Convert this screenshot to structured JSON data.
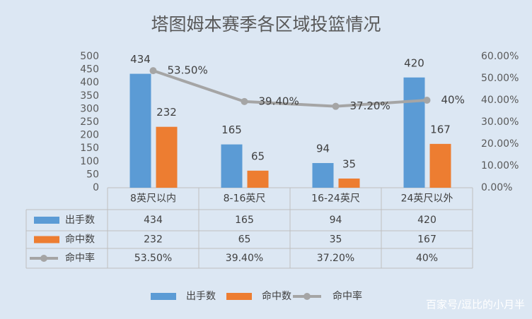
{
  "chart_data": {
    "type": "bar",
    "title": "塔图姆本赛季各区域投篮情况",
    "categories": [
      "8英尺以内",
      "8-16英尺",
      "16-24英尺",
      "24英尺以外"
    ],
    "series": [
      {
        "name": "出手数",
        "color": "#5b9bd5",
        "values": [
          434,
          165,
          94,
          420
        ]
      },
      {
        "name": "命中数",
        "color": "#ed7d31",
        "values": [
          232,
          65,
          35,
          167
        ]
      },
      {
        "name": "命中率",
        "color": "#a5a5a5",
        "type": "line",
        "axis": "y2",
        "values": [
          53.5,
          39.4,
          37.2,
          40
        ],
        "value_labels": [
          "53.50%",
          "39.40%",
          "37.20%",
          "40%"
        ]
      }
    ],
    "ylim": [
      0,
      500
    ],
    "yticks": [
      0,
      50,
      100,
      150,
      200,
      250,
      300,
      350,
      400,
      450,
      500
    ],
    "y2lim": [
      0,
      60
    ],
    "y2ticks": [
      {
        "value": 0,
        "label": "0.00%"
      },
      {
        "value": 10,
        "label": "10.00%"
      },
      {
        "value": 20,
        "label": "20.00%"
      },
      {
        "value": 30,
        "label": "30.00%"
      },
      {
        "value": 40,
        "label": "40.00%"
      },
      {
        "value": 50,
        "label": "50.00%"
      },
      {
        "value": 60,
        "label": "60.00%"
      }
    ],
    "legend": "bottom",
    "data_table": true,
    "watermark": "百家号/逗比的小月半"
  }
}
